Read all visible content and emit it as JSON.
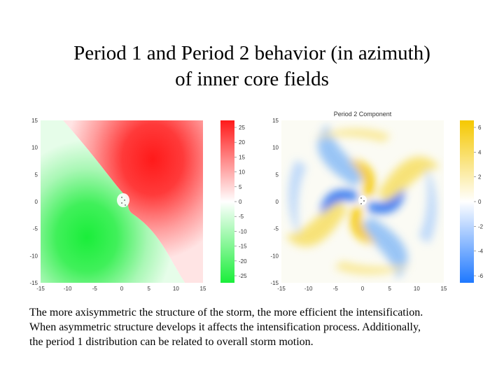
{
  "slide": {
    "title_line1": "Period 1 and Period 2 behavior (in azimuth)",
    "title_line2": "of inner core fields"
  },
  "left_panel": {
    "title": "",
    "x_ticks": [
      "-15",
      "-10",
      "-5",
      "0",
      "5",
      "10",
      "15"
    ],
    "y_ticks": [
      "15",
      "10",
      "5",
      "0",
      "-5",
      "-10",
      "-15"
    ],
    "colorbar_ticks": [
      "25",
      "20",
      "15",
      "10",
      "5",
      "0",
      "-5",
      "-10",
      "-15",
      "-20",
      "-25"
    ],
    "colors": {
      "positive": "#ff1a1a",
      "negative": "#1aee3a",
      "zero": "#ffffff"
    }
  },
  "right_panel": {
    "title": "Period 2 Component",
    "x_ticks": [
      "-15",
      "-10",
      "-5",
      "0",
      "5",
      "10",
      "15"
    ],
    "y_ticks": [
      "15",
      "10",
      "5",
      "0",
      "-5",
      "-10",
      "-15"
    ],
    "colorbar_ticks": [
      "6",
      "4",
      "2",
      "0",
      "-2",
      "-4",
      "-6"
    ],
    "colors": {
      "positive": "#f5c800",
      "negative": "#1e78ff",
      "zero": "#ffffff"
    }
  },
  "caption": {
    "line1": "The more axisymmetric the structure of the storm, the more efficient the intensification.",
    "line2": "When asymmetric structure develops it affects the intensification process.  Additionally,",
    "line3": "the period 1 distribution can be related to overall storm motion."
  }
}
